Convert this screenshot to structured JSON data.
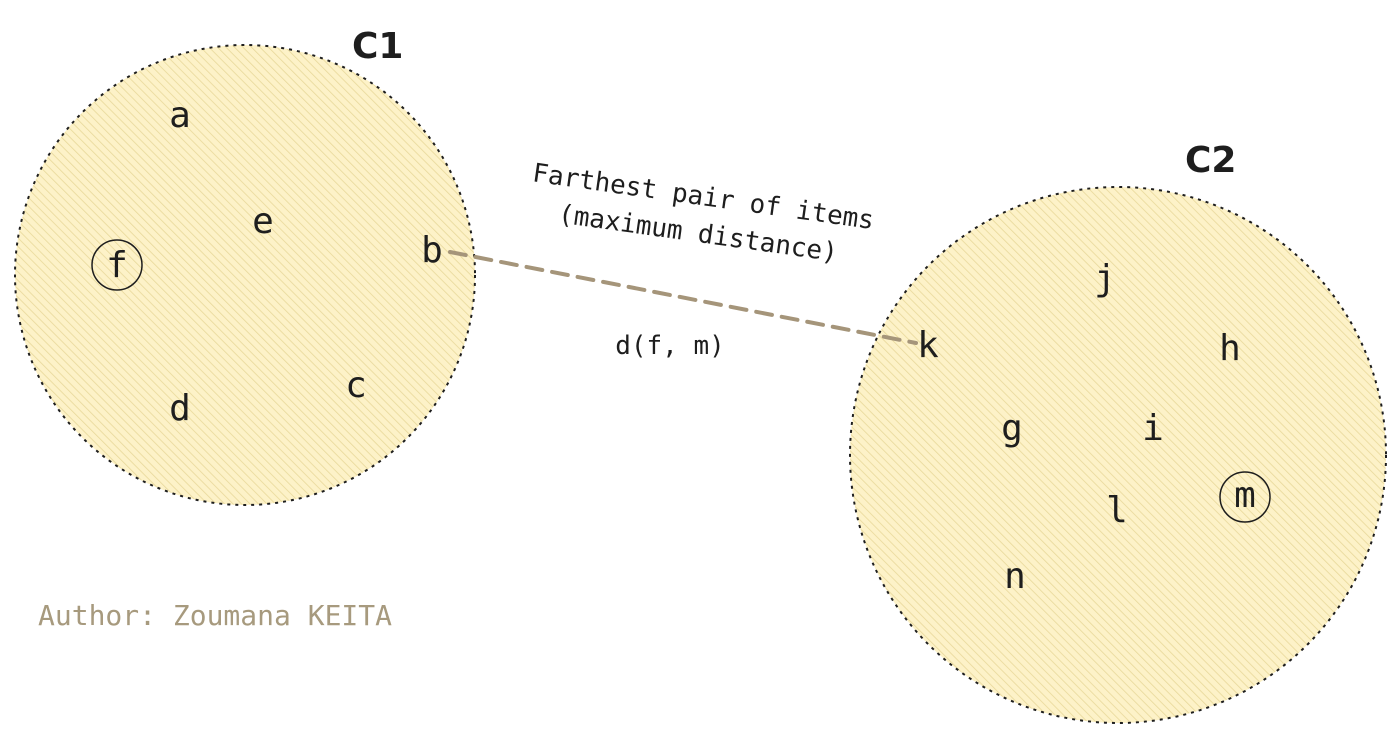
{
  "colors": {
    "cluster_fill": "#fdf2c8",
    "cluster_hatch": "#e8d89a",
    "cluster_border": "#1e1e1e",
    "link_line": "#a5957a",
    "author_text": "#a79a7e"
  },
  "clusters": [
    {
      "id": "c1",
      "label": "C1",
      "points": [
        {
          "label": "a",
          "highlighted": false
        },
        {
          "label": "e",
          "highlighted": false
        },
        {
          "label": "f",
          "highlighted": true
        },
        {
          "label": "b",
          "highlighted": false
        },
        {
          "label": "d",
          "highlighted": false
        },
        {
          "label": "c",
          "highlighted": false
        }
      ]
    },
    {
      "id": "c2",
      "label": "C2",
      "points": [
        {
          "label": "j",
          "highlighted": false
        },
        {
          "label": "k",
          "highlighted": false
        },
        {
          "label": "h",
          "highlighted": false
        },
        {
          "label": "g",
          "highlighted": false
        },
        {
          "label": "i",
          "highlighted": false
        },
        {
          "label": "l",
          "highlighted": false
        },
        {
          "label": "m",
          "highlighted": true
        },
        {
          "label": "n",
          "highlighted": false
        }
      ]
    }
  ],
  "annotation": {
    "line1": "Farthest pair of items",
    "line2": "(maximum distance)"
  },
  "distance_label": "d(f, m)",
  "author": "Author: Zoumana KEITA"
}
